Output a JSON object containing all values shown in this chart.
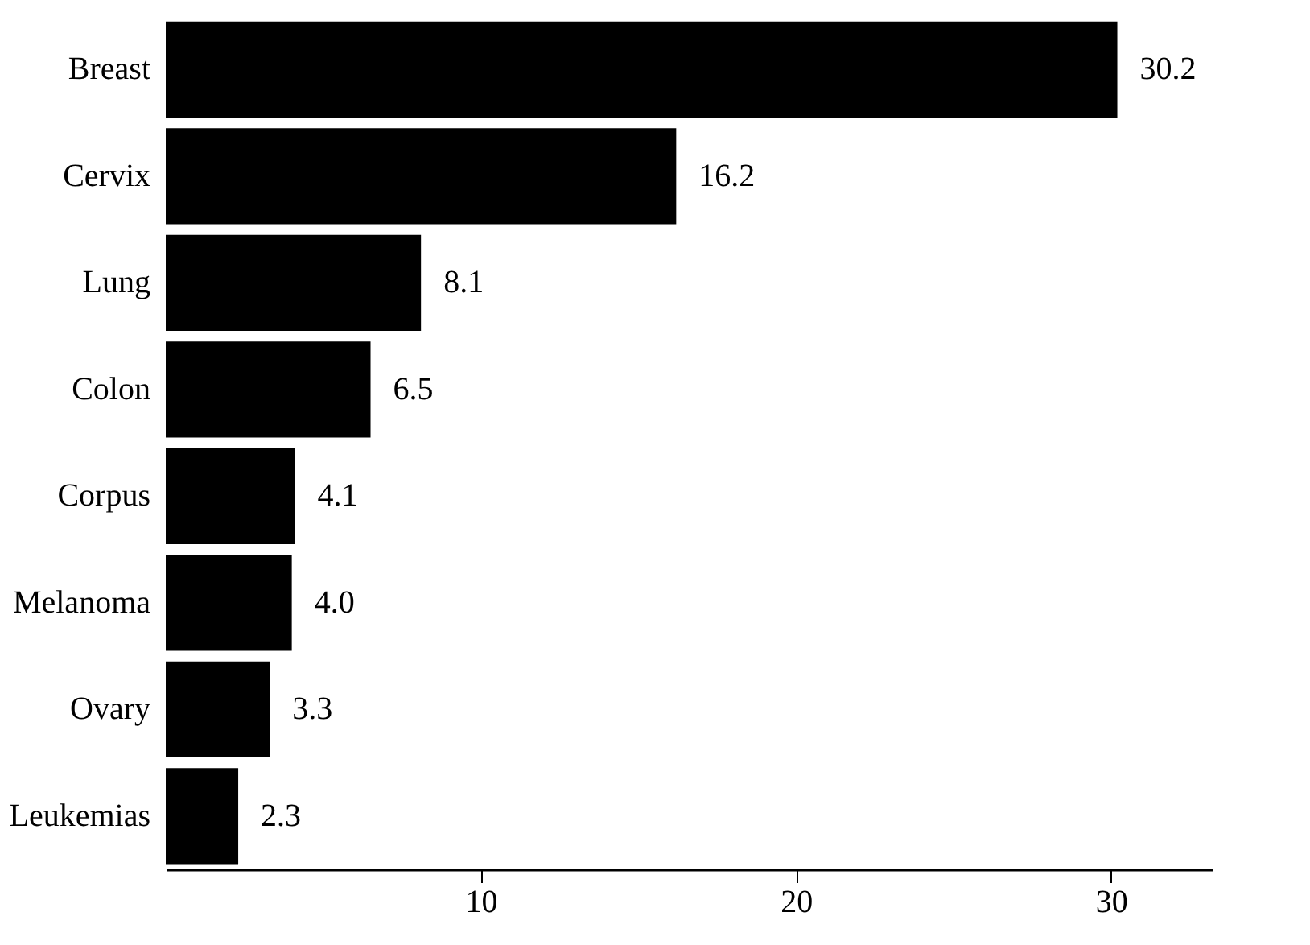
{
  "chart_data": {
    "type": "bar",
    "orientation": "horizontal",
    "categories": [
      "Breast",
      "Cervix",
      "Lung",
      "Colon",
      "Corpus",
      "Melanoma",
      "Ovary",
      "Leukemias"
    ],
    "values": [
      30.2,
      16.2,
      8.1,
      6.5,
      4.1,
      4.0,
      3.3,
      2.3
    ],
    "value_labels": [
      "30.2",
      "16.2",
      "8.1",
      "6.5",
      "4.1",
      "4.0",
      "3.3",
      "2.3"
    ],
    "color": "#000000",
    "grid": false,
    "xlim": [
      0,
      33.2
    ],
    "xticks": [
      10,
      20,
      30
    ]
  }
}
